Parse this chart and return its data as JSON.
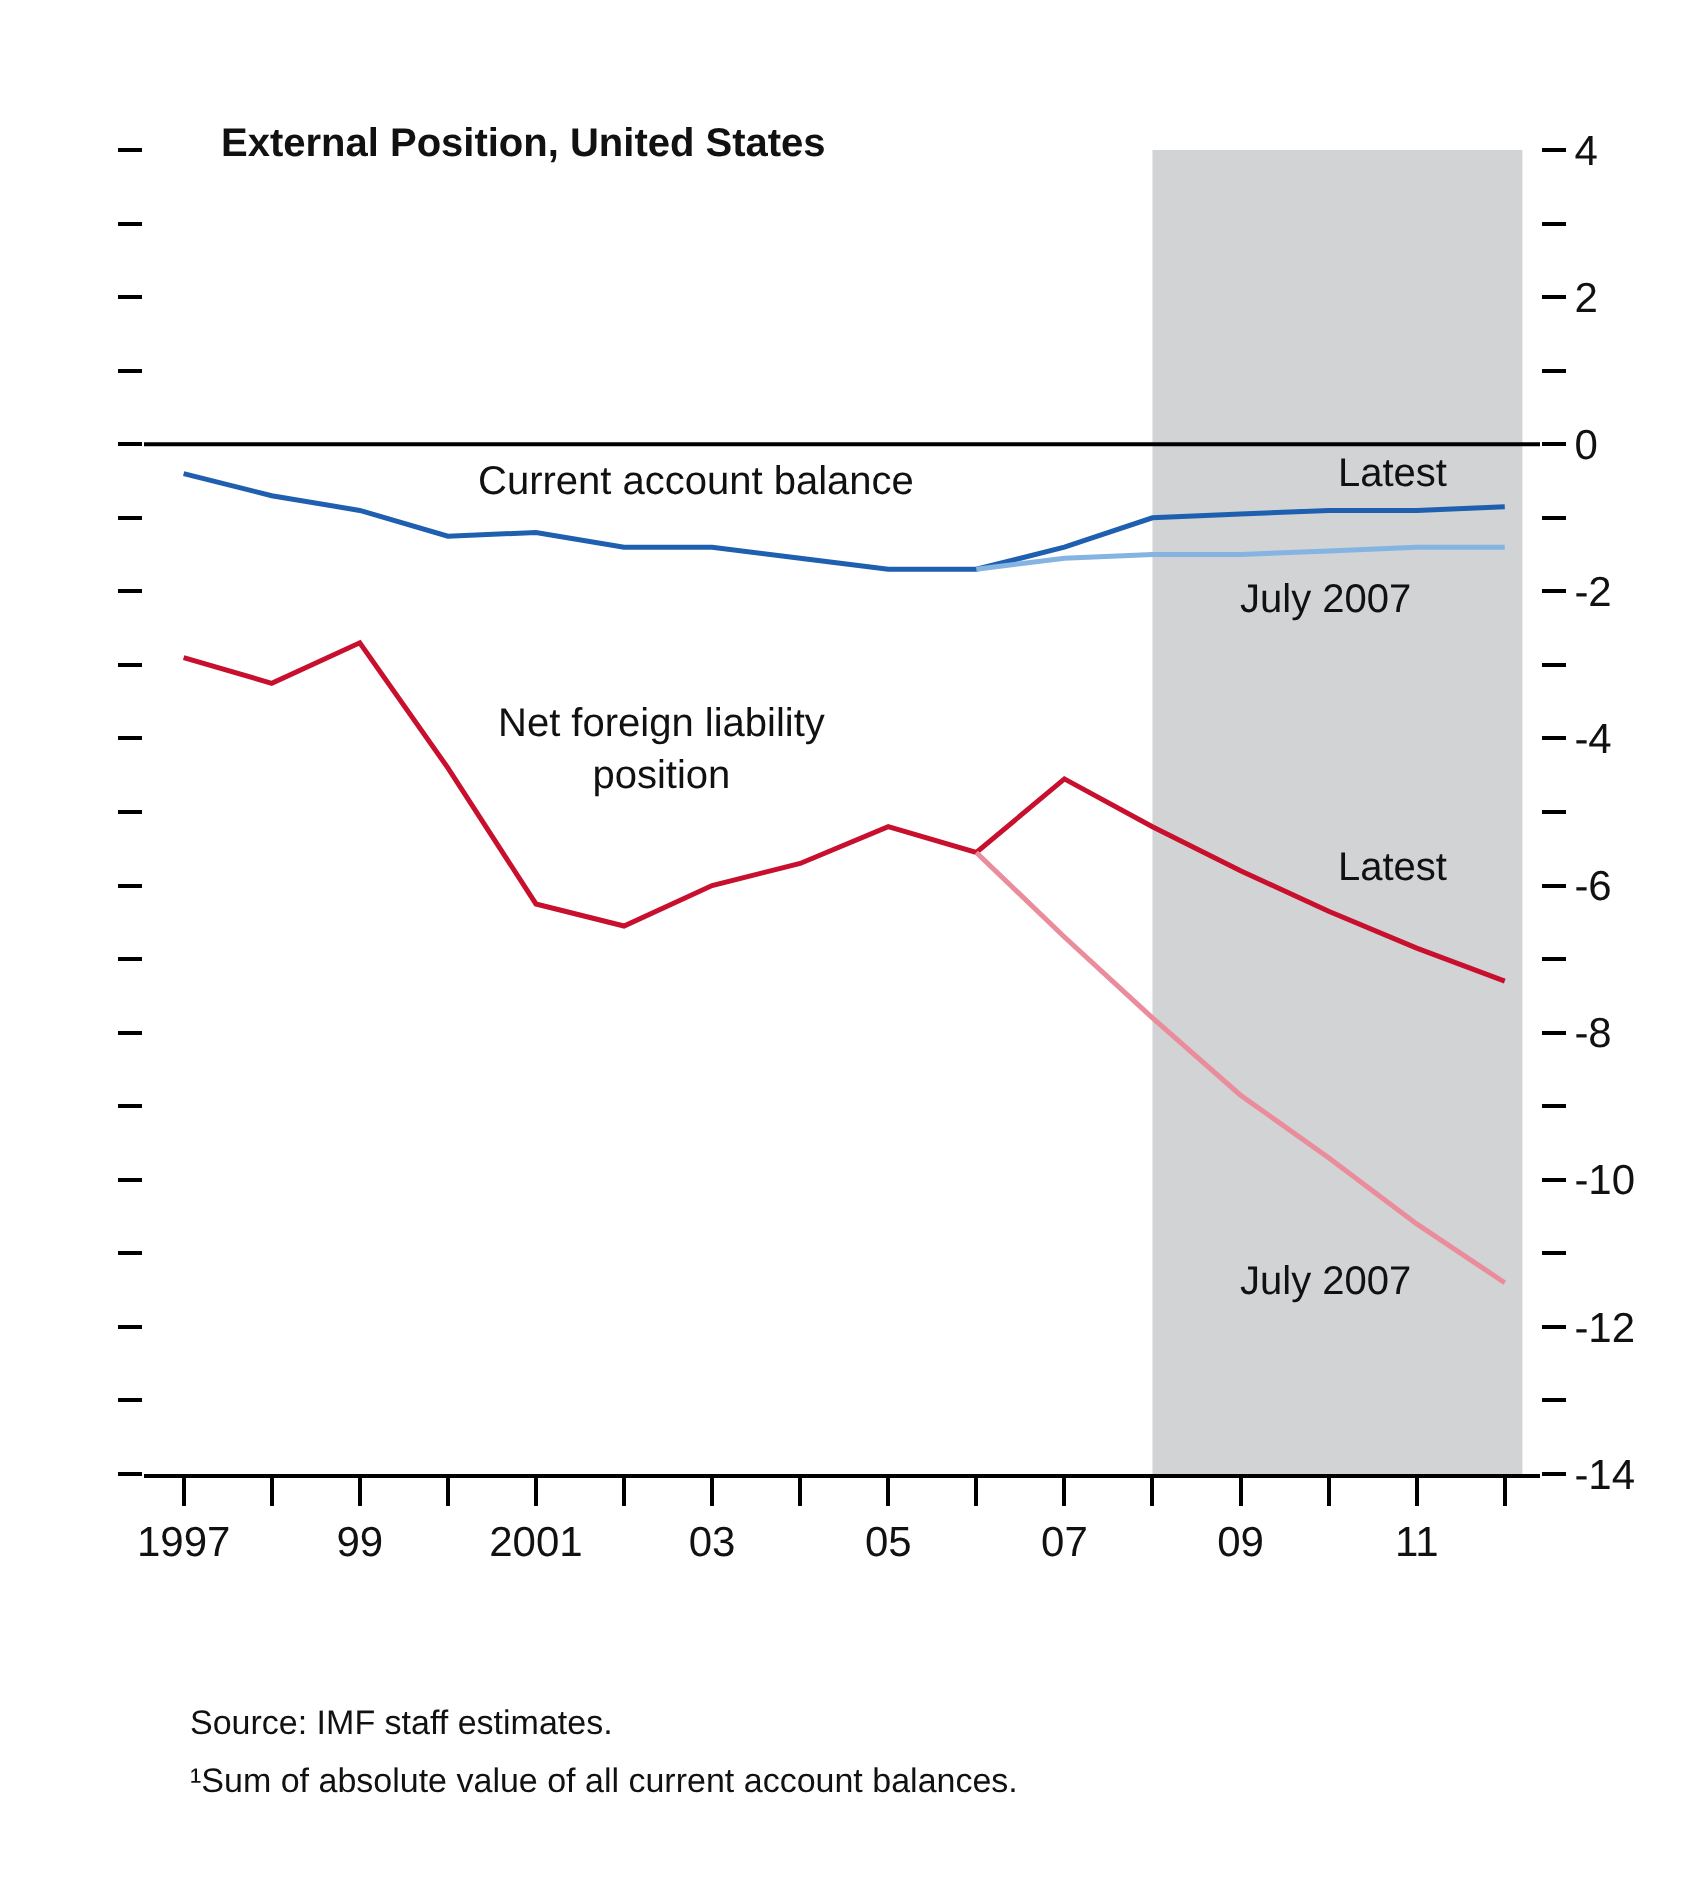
{
  "chart_data": {
    "type": "line",
    "title": "External Position, United States",
    "x": [
      1997,
      1998,
      1999,
      2000,
      2001,
      2002,
      2003,
      2004,
      2005,
      2006,
      2007,
      2008,
      2009,
      2010,
      2011,
      2012
    ],
    "series": [
      {
        "name": "Latest",
        "color": "#1f5fb0",
        "values": [
          -0.4,
          -0.7,
          -0.9,
          -1.25,
          -1.2,
          -1.4,
          -1.4,
          -1.55,
          -1.7,
          -1.7,
          -1.4,
          -1.0,
          -0.95,
          -0.9,
          -0.9,
          -0.85
        ]
      },
      {
        "name": "July 2007",
        "color": "#85b4e3",
        "x": [
          2006,
          2007,
          2008,
          2009,
          2010,
          2011,
          2012
        ],
        "values": [
          -1.7,
          -1.55,
          -1.5,
          -1.5,
          -1.45,
          -1.4,
          -1.4
        ]
      },
      {
        "name": "Latest",
        "color": "#c8102e",
        "values": [
          -2.9,
          -3.25,
          -2.7,
          -4.4,
          -6.25,
          -6.55,
          -6.0,
          -5.7,
          -5.2,
          -5.55,
          -4.55,
          -5.2,
          -5.8,
          -6.35,
          -6.85,
          -7.3
        ]
      },
      {
        "name": "July 2007",
        "color": "#ea8c9c",
        "x": [
          2006,
          2007,
          2008,
          2009,
          2010,
          2011,
          2012
        ],
        "values": [
          -5.55,
          -6.7,
          -7.8,
          -8.85,
          -9.7,
          -10.6,
          -11.4
        ]
      }
    ],
    "xlim": [
      1996.55,
      2012.4
    ],
    "xticks": [
      {
        "value": 1997,
        "label": "1997"
      },
      {
        "value": 1998,
        "label": null
      },
      {
        "value": 1999,
        "label": "99"
      },
      {
        "value": 2000,
        "label": null
      },
      {
        "value": 2001,
        "label": "2001"
      },
      {
        "value": 2002,
        "label": null
      },
      {
        "value": 2003,
        "label": "03"
      },
      {
        "value": 2004,
        "label": null
      },
      {
        "value": 2005,
        "label": "05"
      },
      {
        "value": 2006,
        "label": null
      },
      {
        "value": 2007,
        "label": "07"
      },
      {
        "value": 2008,
        "label": null
      },
      {
        "value": 2009,
        "label": "09"
      },
      {
        "value": 2010,
        "label": null
      },
      {
        "value": 2011,
        "label": "11"
      },
      {
        "value": 2012,
        "label": null
      }
    ],
    "ylim": [
      -14,
      4
    ],
    "yticks": [
      -14,
      {
        "value": -13,
        "label": null
      },
      -12,
      {
        "value": -11,
        "label": null
      },
      -10,
      {
        "value": -9,
        "label": null
      },
      -8,
      {
        "value": -7,
        "label": null
      },
      -6,
      {
        "value": -5,
        "label": null
      },
      -4,
      {
        "value": -3,
        "label": null
      },
      -2,
      {
        "value": -1,
        "label": null
      },
      0,
      {
        "value": 1,
        "label": null
      },
      2,
      {
        "value": 3,
        "label": null
      },
      4
    ],
    "ref_lines": [
      {
        "axis": "y",
        "value": 0,
        "color": "#000000"
      }
    ],
    "bands": [
      {
        "axis": "x",
        "from": 2008,
        "to": 2012.2,
        "color": "#d1d3d4"
      }
    ],
    "grid": false,
    "legend": false,
    "marker": "none",
    "line_style": "solid",
    "annotations": [
      "Current account balance",
      "Net foreign liability\nposition",
      "Source: IMF staff estimates.",
      "¹Sum of absolute value of all current account balances."
    ]
  }
}
